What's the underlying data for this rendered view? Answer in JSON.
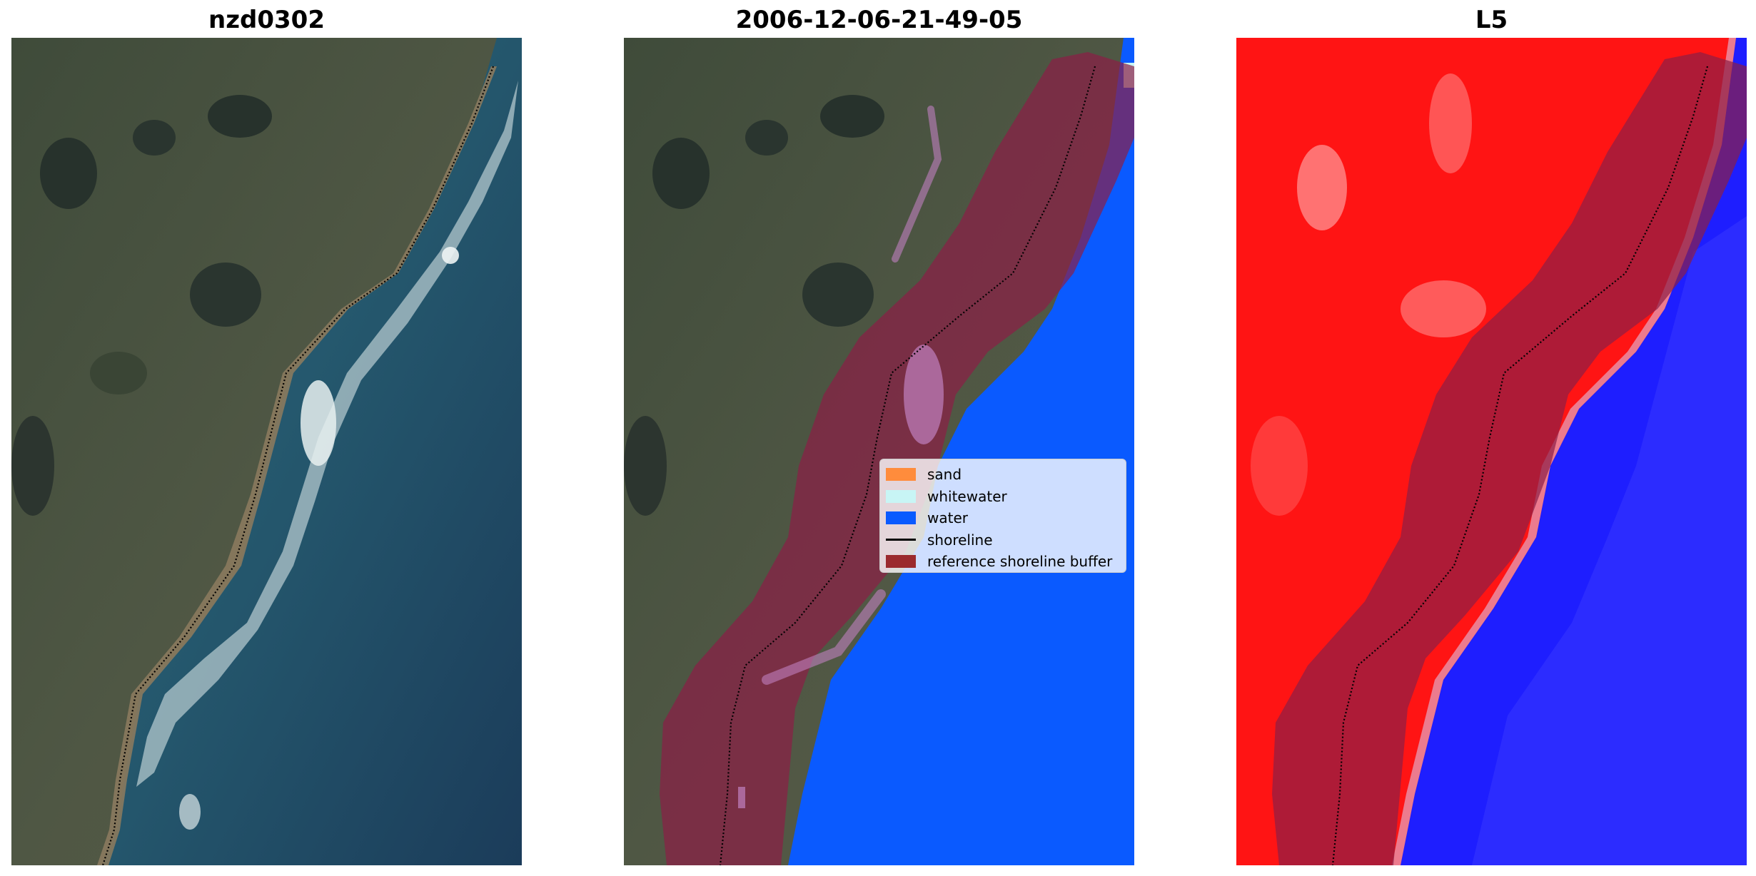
{
  "panels": [
    {
      "title": "nzd0302"
    },
    {
      "title": "2006-12-06-21-49-05"
    },
    {
      "title": "L5"
    }
  ],
  "legend": {
    "items": [
      {
        "label": "sand",
        "color": "#ff8c3c"
      },
      {
        "label": "whitewater",
        "color": "#c8f5f5"
      },
      {
        "label": "water",
        "color": "#0a5aff"
      },
      {
        "label": "shoreline",
        "color": "#000000"
      },
      {
        "label": "reference shoreline buffer",
        "color": "#9b2a2e"
      }
    ]
  },
  "colors": {
    "land": "#4a5440",
    "sea": "#1f4f66",
    "water_class": "#0a5aff",
    "buffer": "#8c1e46",
    "index_land": "#ff1414",
    "index_water": "#1414ff"
  }
}
